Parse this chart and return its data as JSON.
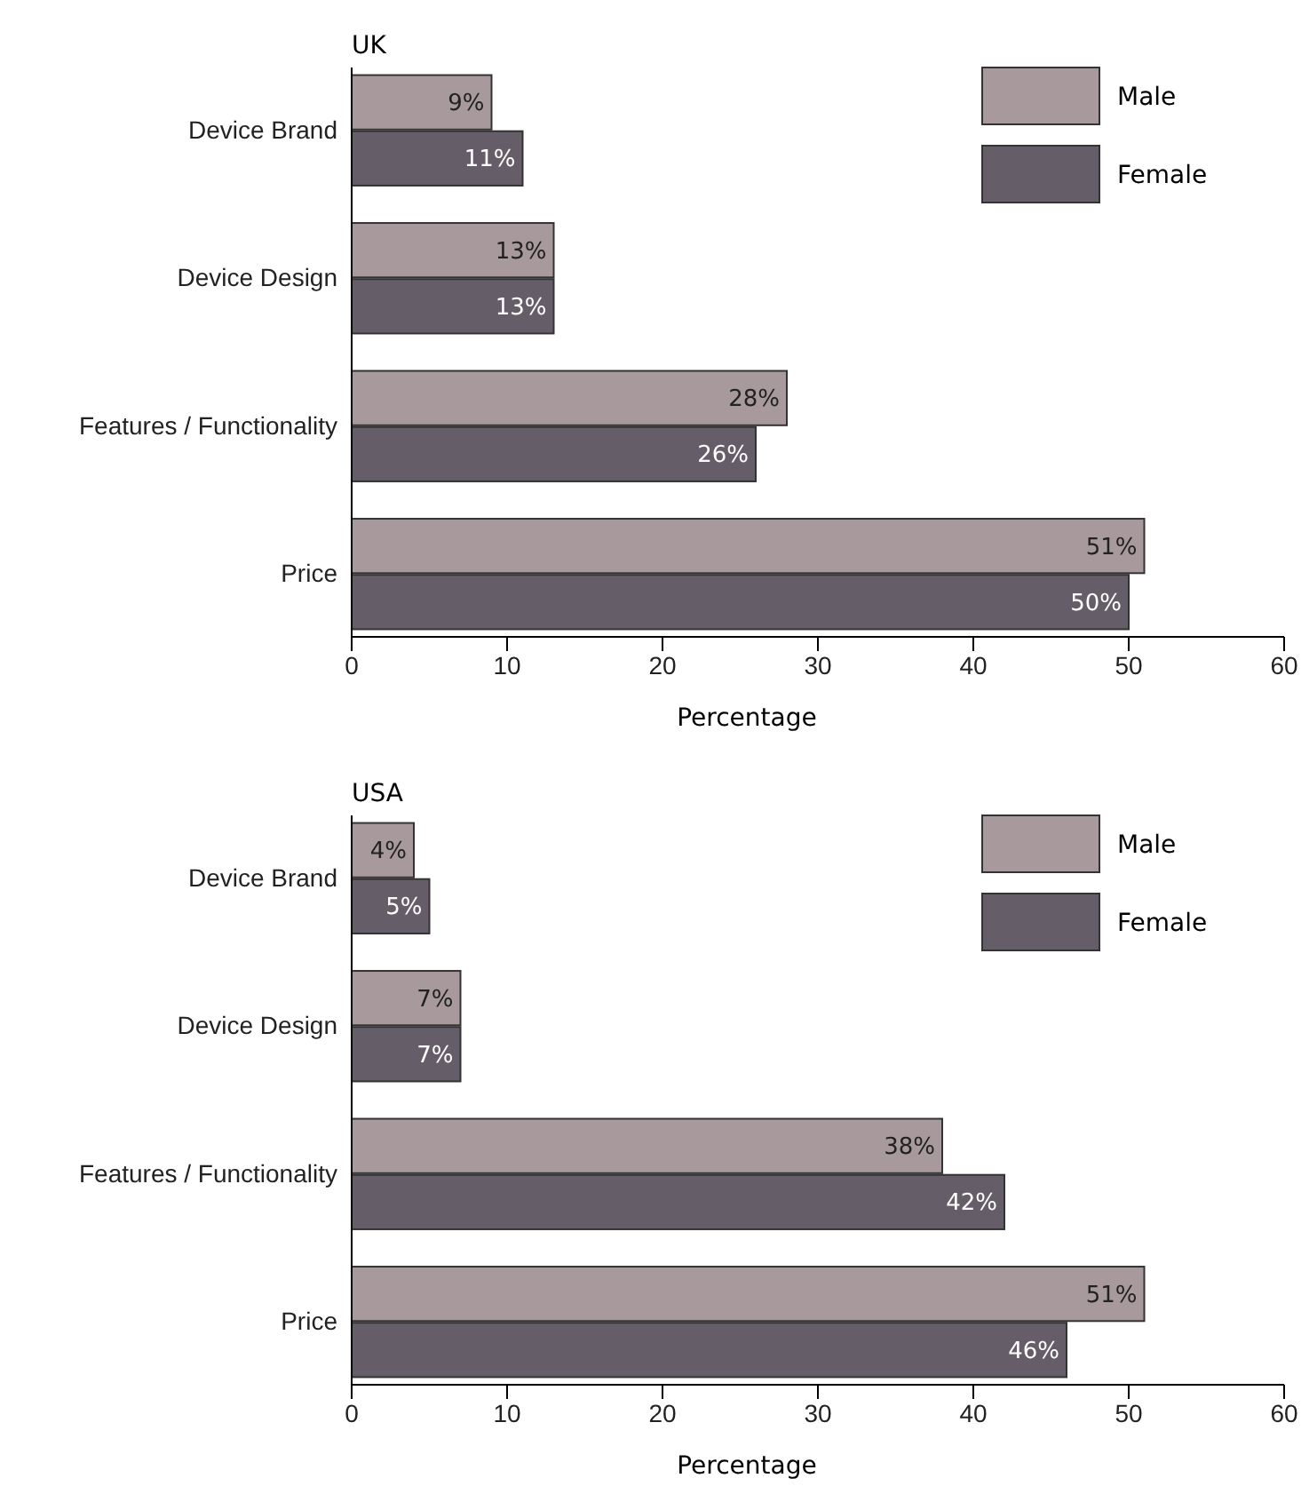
{
  "chart_data": [
    {
      "type": "bar",
      "orientation": "horizontal",
      "title": "UK",
      "xlabel": "Percentage",
      "categories": [
        "Device Brand",
        "Device Design",
        "Features / Functionality",
        "Price"
      ],
      "xlim": [
        0,
        60
      ],
      "xticks": [
        0,
        10,
        20,
        30,
        40,
        50,
        60
      ],
      "legend": "top right",
      "grid": false,
      "series": [
        {
          "name": "Male",
          "color": "#a89a9c",
          "values": [
            9,
            13,
            28,
            51
          ],
          "value_labels": [
            "9%",
            "13%",
            "28%",
            "51%"
          ]
        },
        {
          "name": "Female",
          "color": "#655d68",
          "values": [
            11,
            13,
            26,
            50
          ],
          "value_labels": [
            "11%",
            "13%",
            "26%",
            "50%"
          ]
        }
      ]
    },
    {
      "type": "bar",
      "orientation": "horizontal",
      "title": "USA",
      "xlabel": "Percentage",
      "categories": [
        "Device Brand",
        "Device Design",
        "Features / Functionality",
        "Price"
      ],
      "xlim": [
        0,
        60
      ],
      "xticks": [
        0,
        10,
        20,
        30,
        40,
        50,
        60
      ],
      "legend": "top right",
      "grid": false,
      "series": [
        {
          "name": "Male",
          "color": "#a89a9c",
          "values": [
            4,
            7,
            38,
            51
          ],
          "value_labels": [
            "4%",
            "7%",
            "38%",
            "51%"
          ]
        },
        {
          "name": "Female",
          "color": "#655d68",
          "values": [
            5,
            7,
            42,
            46
          ],
          "value_labels": [
            "5%",
            "7%",
            "42%",
            "46%"
          ]
        }
      ]
    }
  ]
}
